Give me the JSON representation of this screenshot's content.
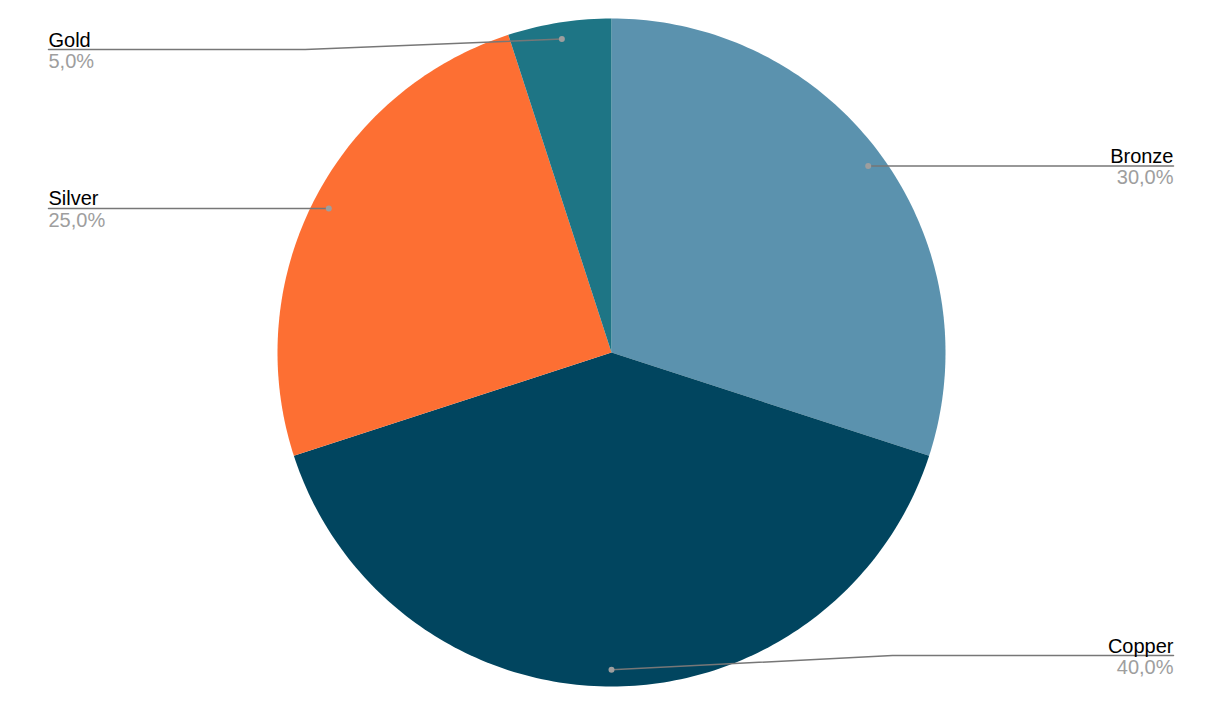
{
  "chart_data": {
    "type": "pie",
    "categories": [
      "Bronze",
      "Copper",
      "Silver",
      "Gold"
    ],
    "values": [
      30,
      40,
      25,
      5
    ],
    "value_labels": [
      "30,0%",
      "40,0%",
      "25,0%",
      "5,0%"
    ],
    "colors": [
      "#5b92ae",
      "#01455f",
      "#fd6f33",
      "#1e7585"
    ],
    "data_labels": true
  }
}
